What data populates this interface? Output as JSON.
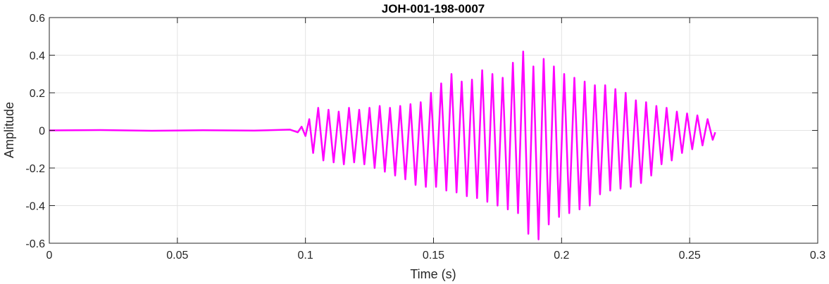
{
  "chart_data": {
    "type": "line",
    "title": "JOH-001-198-0007",
    "xlabel": "Time (s)",
    "ylabel": "Amplitude",
    "xlim": [
      0,
      0.3
    ],
    "ylim": [
      -0.6,
      0.6
    ],
    "x_ticks": [
      "0",
      "0.05",
      "0.1",
      "0.15",
      "0.2",
      "0.25",
      "0.3"
    ],
    "y_ticks": [
      "0.6",
      "0.4",
      "0.2",
      "0",
      "-0.2",
      "-0.4",
      "-0.6"
    ],
    "grid": true,
    "line_color": "#ff00ff",
    "series": [
      {
        "color": "#ff00ff",
        "x": [
          0,
          0.02,
          0.04,
          0.06,
          0.08,
          0.094,
          0.097,
          0.0985,
          0.1,
          0.1015,
          0.103,
          0.105,
          0.107,
          0.109,
          0.111,
          0.113,
          0.115,
          0.117,
          0.119,
          0.121,
          0.123,
          0.125,
          0.127,
          0.129,
          0.131,
          0.133,
          0.135,
          0.137,
          0.139,
          0.141,
          0.143,
          0.145,
          0.147,
          0.149,
          0.151,
          0.153,
          0.155,
          0.157,
          0.159,
          0.161,
          0.163,
          0.165,
          0.167,
          0.169,
          0.171,
          0.173,
          0.175,
          0.177,
          0.179,
          0.181,
          0.183,
          0.185,
          0.187,
          0.189,
          0.191,
          0.193,
          0.195,
          0.197,
          0.199,
          0.201,
          0.203,
          0.205,
          0.207,
          0.209,
          0.211,
          0.213,
          0.215,
          0.217,
          0.219,
          0.221,
          0.223,
          0.225,
          0.227,
          0.229,
          0.231,
          0.233,
          0.235,
          0.237,
          0.239,
          0.241,
          0.243,
          0.245,
          0.247,
          0.249,
          0.251,
          0.253,
          0.255,
          0.257,
          0.259,
          0.26
        ],
        "y": [
          0,
          0.002,
          -0.002,
          0.001,
          -0.001,
          0.004,
          -0.01,
          0.02,
          -0.03,
          0.06,
          -0.12,
          0.12,
          -0.16,
          0.11,
          -0.17,
          0.1,
          -0.18,
          0.12,
          -0.17,
          0.11,
          -0.18,
          0.12,
          -0.2,
          0.13,
          -0.22,
          0.12,
          -0.24,
          0.13,
          -0.26,
          0.14,
          -0.29,
          0.15,
          -0.3,
          0.2,
          -0.3,
          0.25,
          -0.32,
          0.3,
          -0.33,
          0.26,
          -0.35,
          0.27,
          -0.36,
          0.32,
          -0.38,
          0.3,
          -0.4,
          0.28,
          -0.42,
          0.36,
          -0.44,
          0.42,
          -0.55,
          0.34,
          -0.58,
          0.38,
          -0.5,
          0.34,
          -0.46,
          0.3,
          -0.44,
          0.28,
          -0.42,
          0.26,
          -0.4,
          0.24,
          -0.34,
          0.24,
          -0.32,
          0.22,
          -0.31,
          0.2,
          -0.3,
          0.16,
          -0.28,
          0.15,
          -0.24,
          0.13,
          -0.18,
          0.12,
          -0.16,
          0.1,
          -0.12,
          0.09,
          -0.1,
          0.08,
          -0.08,
          0.06,
          -0.05,
          -0.01
        ]
      }
    ]
  }
}
